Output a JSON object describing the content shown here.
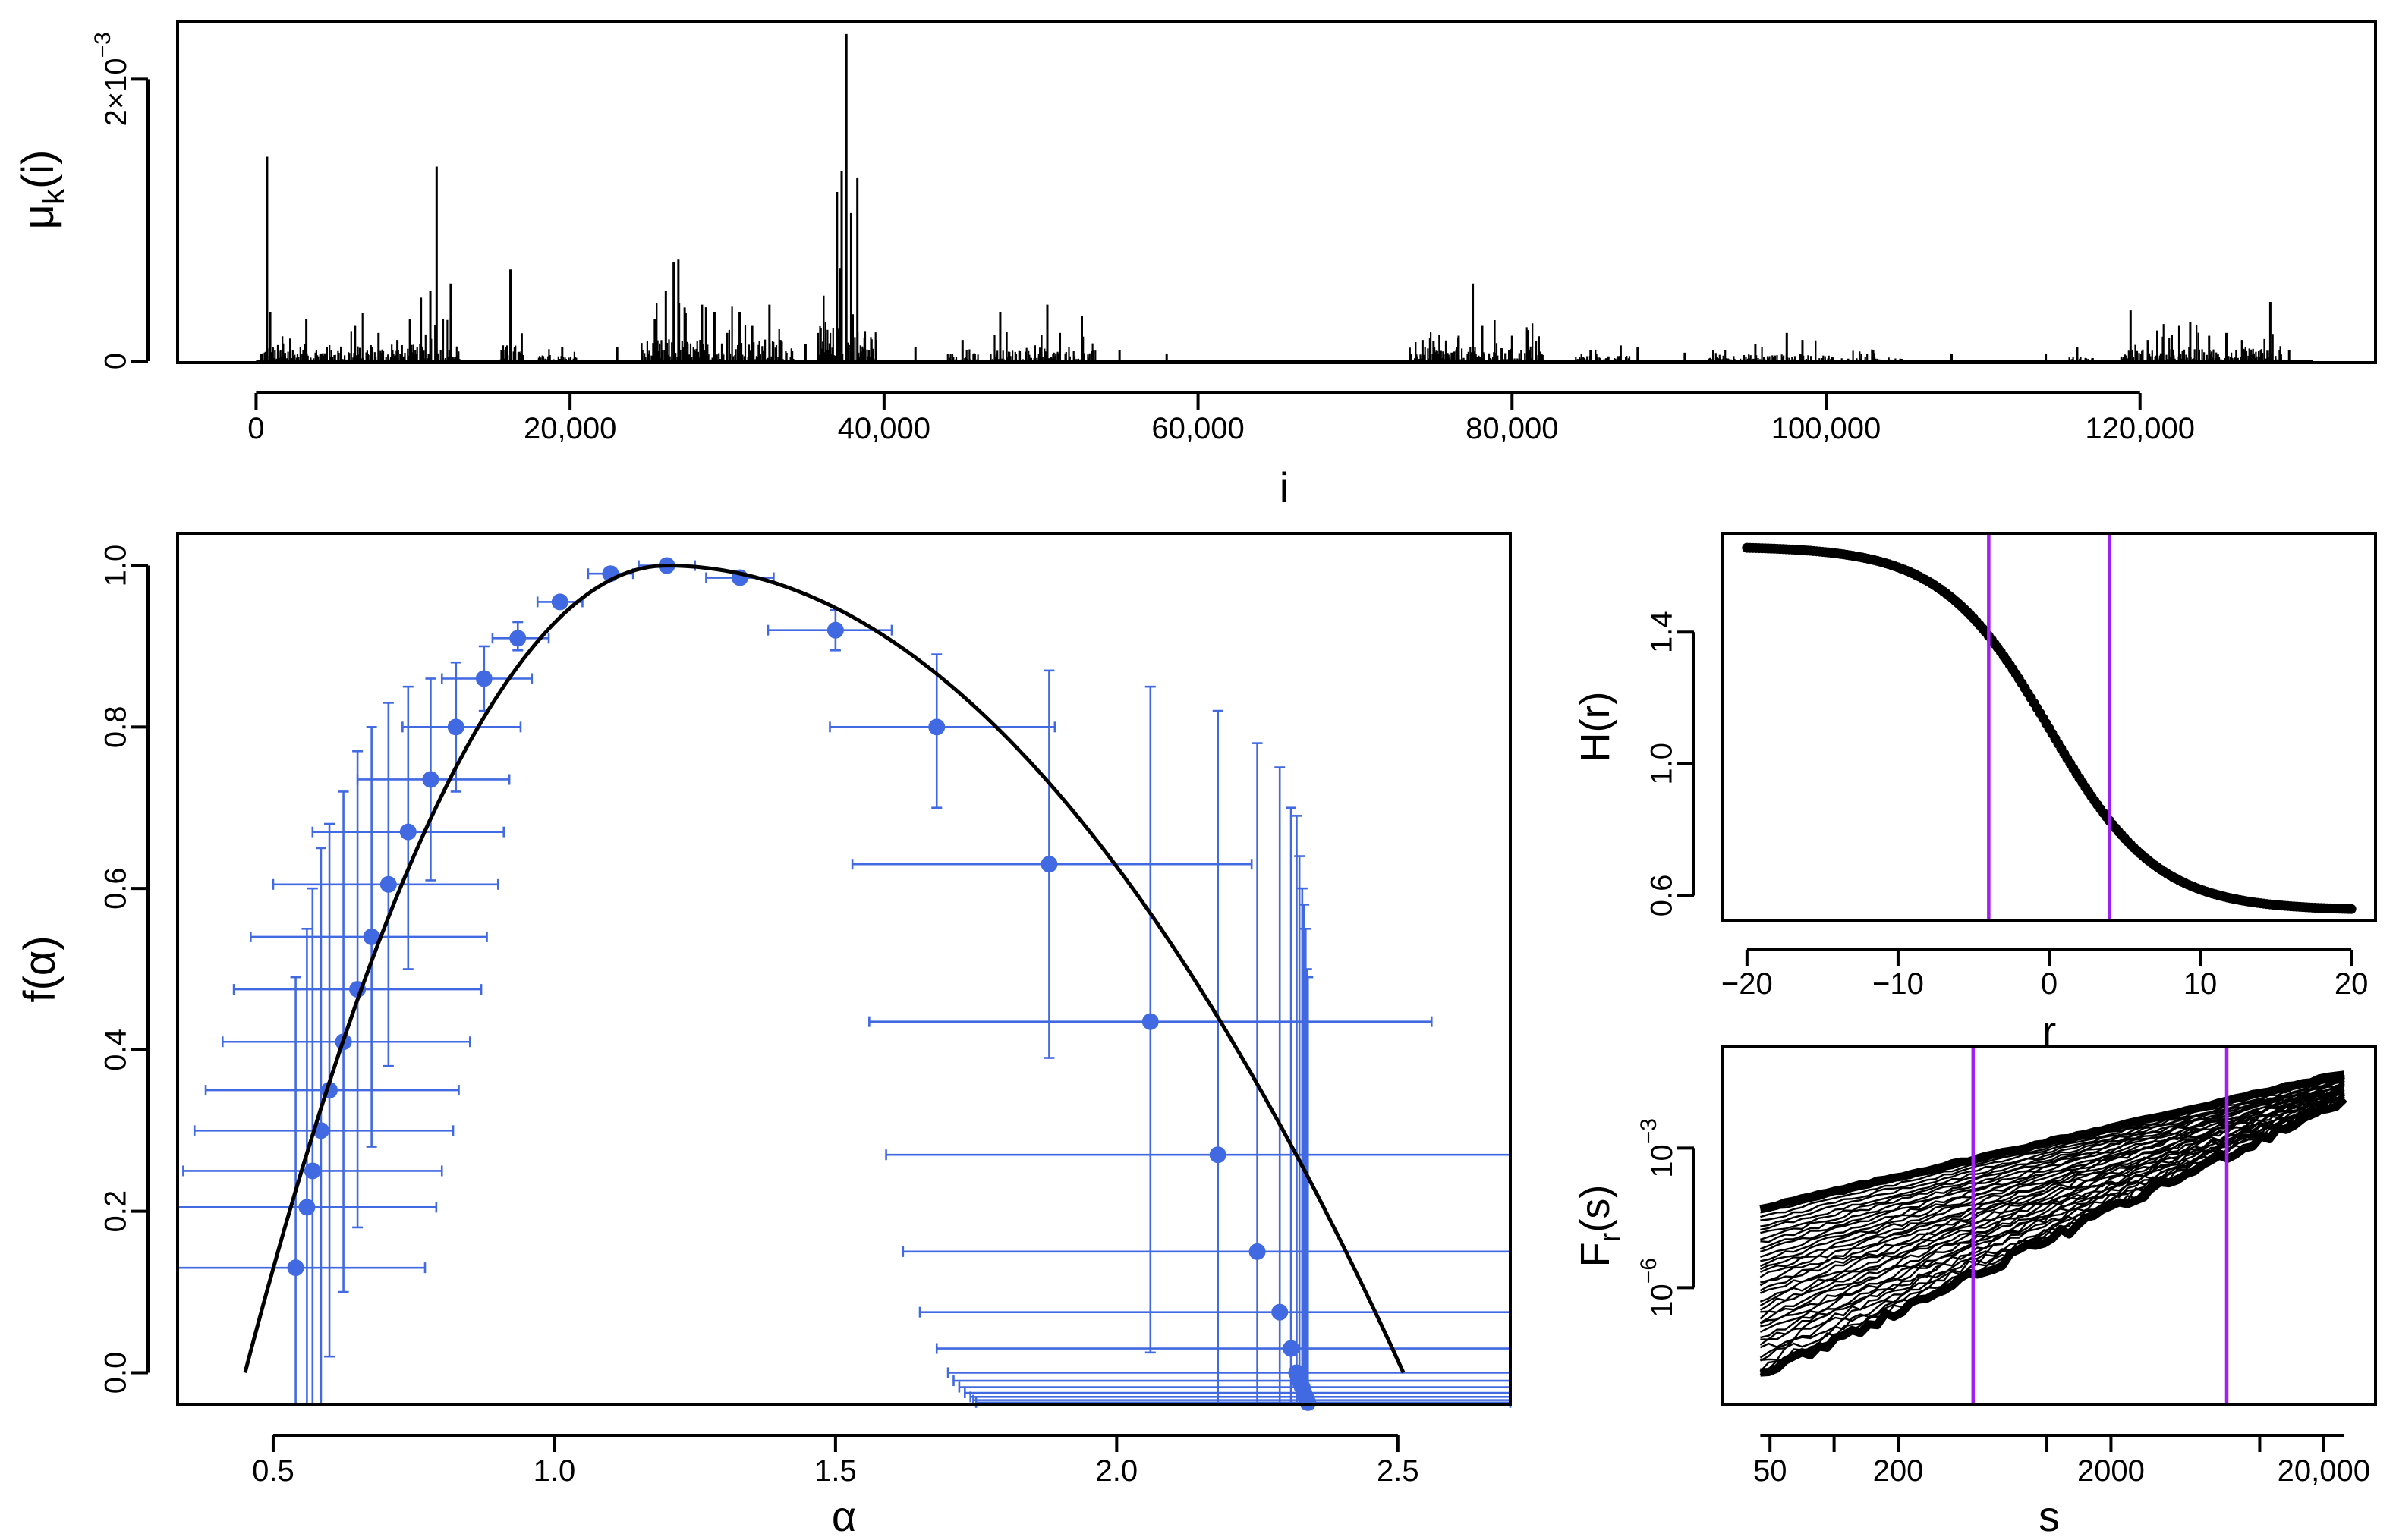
{
  "chart_data": [
    {
      "id": "measure",
      "type": "line",
      "title": "",
      "xlabel": "i",
      "ylabel": "μk(i)",
      "ylabel_main": "μ",
      "ylabel_sub": "k",
      "ylabel_tail": "(i)",
      "xlim": [
        -5000,
        135000
      ],
      "ylim": [
        0,
        0.0024
      ],
      "x_ticks": [
        0,
        20000,
        40000,
        60000,
        80000,
        100000,
        120000
      ],
      "x_tick_labels": [
        "0",
        "20,000",
        "40,000",
        "60,000",
        "80,000",
        "100,000",
        "120,000"
      ],
      "y_tick_labels": [
        "0",
        "2×10⁻³"
      ],
      "y_tick_label_2x": "2×10",
      "y_tick_label_exp": "−3",
      "y_ticks": [
        0,
        0.002
      ],
      "x_end": 131000,
      "spikes": [
        [
          700,
          0.00145
        ],
        [
          900,
          0.00035
        ],
        [
          3200,
          0.0003
        ],
        [
          4500,
          0.0001
        ],
        [
          6300,
          0.00025
        ],
        [
          7800,
          0.0002
        ],
        [
          9000,
          0.00015
        ],
        [
          9800,
          0.0003
        ],
        [
          10500,
          0.00045
        ],
        [
          11100,
          0.0005
        ],
        [
          11500,
          0.00138
        ],
        [
          11900,
          0.0003
        ],
        [
          12400,
          0.00055
        ],
        [
          16200,
          0.00065
        ],
        [
          19500,
          0.0001
        ],
        [
          23000,
          0.0001
        ],
        [
          25400,
          0.0003
        ],
        [
          26100,
          0.0005
        ],
        [
          26600,
          0.0007
        ],
        [
          26900,
          0.00072
        ],
        [
          27300,
          0.00038
        ],
        [
          28400,
          0.0004
        ],
        [
          29200,
          0.00035
        ],
        [
          30000,
          0.0002
        ],
        [
          30800,
          0.00035
        ],
        [
          31600,
          0.00025
        ],
        [
          32700,
          0.0004
        ],
        [
          33400,
          0.00015
        ],
        [
          35000,
          0.00012
        ],
        [
          37000,
          0.0012
        ],
        [
          37300,
          0.00135
        ],
        [
          37600,
          0.00232
        ],
        [
          37900,
          0.00105
        ],
        [
          38300,
          0.0013
        ],
        [
          39500,
          0.00015
        ],
        [
          42000,
          0.0001
        ],
        [
          45000,
          0.00015
        ],
        [
          47400,
          0.00035
        ],
        [
          50400,
          0.0004
        ],
        [
          51200,
          0.0002
        ],
        [
          52600,
          0.00032
        ],
        [
          55000,
          8e-05
        ],
        [
          58000,
          5e-05
        ],
        [
          74300,
          0.00015
        ],
        [
          75000,
          0.00014
        ],
        [
          76600,
          0.00018
        ],
        [
          77500,
          0.00055
        ],
        [
          78100,
          0.00025
        ],
        [
          80000,
          0.00018
        ],
        [
          81000,
          0.00022
        ],
        [
          85000,
          8e-05
        ],
        [
          88000,
          0.0001
        ],
        [
          91000,
          6e-05
        ],
        [
          95500,
          0.00012
        ],
        [
          97500,
          0.0002
        ],
        [
          98500,
          0.00015
        ],
        [
          103000,
          8e-05
        ],
        [
          108000,
          5e-05
        ],
        [
          114000,
          5e-05
        ],
        [
          116000,
          0.0001
        ],
        [
          119400,
          0.00036
        ],
        [
          120500,
          0.00015
        ],
        [
          122500,
          0.00025
        ],
        [
          123200,
          0.00028
        ],
        [
          124400,
          0.00018
        ],
        [
          125500,
          0.0002
        ],
        [
          126500,
          0.00015
        ],
        [
          128300,
          0.00042
        ],
        [
          129500,
          8e-05
        ]
      ],
      "active_ranges": [
        [
          300,
          13000,
          0.00012
        ],
        [
          15500,
          17000,
          0.00012
        ],
        [
          18000,
          20500,
          4e-05
        ],
        [
          24500,
          34500,
          0.00016
        ],
        [
          35800,
          39500,
          0.00025
        ],
        [
          44000,
          46000,
          6e-05
        ],
        [
          46800,
          53500,
          8e-05
        ],
        [
          73500,
          82000,
          0.0001
        ],
        [
          84000,
          87500,
          4e-05
        ],
        [
          92500,
          100500,
          5e-05
        ],
        [
          101000,
          105000,
          3e-05
        ],
        [
          115500,
          117000,
          3e-05
        ],
        [
          118800,
          129000,
          9e-05
        ]
      ]
    },
    {
      "id": "spectrum",
      "type": "scatter",
      "title": "",
      "xlabel": "α",
      "ylabel": "f(α)",
      "xlim": [
        0.33,
        2.7
      ],
      "ylim": [
        -0.04,
        1.04
      ],
      "x_ticks": [
        0.5,
        1.0,
        1.5,
        2.0,
        2.5
      ],
      "x_tick_labels": [
        "0.5",
        "1.0",
        "1.5",
        "2.0",
        "2.5"
      ],
      "y_ticks": [
        0.0,
        0.2,
        0.4,
        0.6,
        0.8,
        1.0
      ],
      "y_tick_labels": [
        "0.0",
        "0.2",
        "0.4",
        "0.6",
        "0.8",
        "1.0"
      ],
      "series": [
        {
          "name": "estimates",
          "color": "#4169E1",
          "points": [
            {
              "a": 0.54,
              "f": 0.13,
              "xlo": 0.33,
              "xhi": 0.77,
              "ylo": -0.06,
              "yhi": 0.49
            },
            {
              "a": 0.56,
              "f": 0.205,
              "xlo": 0.32,
              "xhi": 0.79,
              "ylo": -0.06,
              "yhi": 0.55
            },
            {
              "a": 0.57,
              "f": 0.25,
              "xlo": 0.34,
              "xhi": 0.8,
              "ylo": -0.06,
              "yhi": 0.6
            },
            {
              "a": 0.585,
              "f": 0.3,
              "xlo": 0.36,
              "xhi": 0.82,
              "ylo": -0.06,
              "yhi": 0.65
            },
            {
              "a": 0.6,
              "f": 0.35,
              "xlo": 0.38,
              "xhi": 0.83,
              "ylo": 0.02,
              "yhi": 0.68
            },
            {
              "a": 0.625,
              "f": 0.41,
              "xlo": 0.41,
              "xhi": 0.85,
              "ylo": 0.1,
              "yhi": 0.72
            },
            {
              "a": 0.65,
              "f": 0.475,
              "xlo": 0.43,
              "xhi": 0.87,
              "ylo": 0.18,
              "yhi": 0.77
            },
            {
              "a": 0.675,
              "f": 0.54,
              "xlo": 0.46,
              "xhi": 0.88,
              "ylo": 0.28,
              "yhi": 0.8
            },
            {
              "a": 0.705,
              "f": 0.605,
              "xlo": 0.5,
              "xhi": 0.9,
              "ylo": 0.38,
              "yhi": 0.83
            },
            {
              "a": 0.74,
              "f": 0.67,
              "xlo": 0.57,
              "xhi": 0.91,
              "ylo": 0.5,
              "yhi": 0.85
            },
            {
              "a": 0.78,
              "f": 0.735,
              "xlo": 0.65,
              "xhi": 0.92,
              "ylo": 0.61,
              "yhi": 0.86
            },
            {
              "a": 0.825,
              "f": 0.8,
              "xlo": 0.73,
              "xhi": 0.94,
              "ylo": 0.72,
              "yhi": 0.88
            },
            {
              "a": 0.875,
              "f": 0.86,
              "xlo": 0.8,
              "xhi": 0.96,
              "ylo": 0.82,
              "yhi": 0.9
            },
            {
              "a": 0.935,
              "f": 0.91,
              "xlo": 0.89,
              "xhi": 0.99,
              "ylo": 0.895,
              "yhi": 0.93
            },
            {
              "a": 1.01,
              "f": 0.955,
              "xlo": 0.97,
              "xhi": 1.05,
              "ylo": 0.948,
              "yhi": 0.962
            },
            {
              "a": 1.1,
              "f": 0.99,
              "xlo": 1.06,
              "xhi": 1.14,
              "ylo": 0.99,
              "yhi": 0.99
            },
            {
              "a": 1.2,
              "f": 1.0,
              "xlo": 1.15,
              "xhi": 1.25,
              "ylo": 1.0,
              "yhi": 1.0
            },
            {
              "a": 1.33,
              "f": 0.985,
              "xlo": 1.27,
              "xhi": 1.39,
              "ylo": 0.985,
              "yhi": 0.985
            },
            {
              "a": 1.5,
              "f": 0.92,
              "xlo": 1.38,
              "xhi": 1.6,
              "ylo": 0.895,
              "yhi": 0.945
            },
            {
              "a": 1.68,
              "f": 0.8,
              "xlo": 1.49,
              "xhi": 1.89,
              "ylo": 0.7,
              "yhi": 0.89
            },
            {
              "a": 1.88,
              "f": 0.63,
              "xlo": 1.53,
              "xhi": 2.24,
              "ylo": 0.39,
              "yhi": 0.87
            },
            {
              "a": 2.06,
              "f": 0.435,
              "xlo": 1.56,
              "xhi": 2.56,
              "ylo": 0.025,
              "yhi": 0.85
            },
            {
              "a": 2.18,
              "f": 0.27,
              "xlo": 1.59,
              "xhi": 2.7,
              "ylo": -0.06,
              "yhi": 0.82
            },
            {
              "a": 2.25,
              "f": 0.15,
              "xlo": 1.62,
              "xhi": 2.7,
              "ylo": -0.06,
              "yhi": 0.78
            },
            {
              "a": 2.29,
              "f": 0.075,
              "xlo": 1.65,
              "xhi": 2.7,
              "ylo": -0.06,
              "yhi": 0.75
            },
            {
              "a": 2.31,
              "f": 0.03,
              "xlo": 1.68,
              "xhi": 2.7,
              "ylo": -0.06,
              "yhi": 0.7
            },
            {
              "a": 2.32,
              "f": 0.0,
              "xlo": 1.7,
              "xhi": 2.7,
              "ylo": -0.06,
              "yhi": 0.69
            },
            {
              "a": 2.325,
              "f": -0.01,
              "xlo": 1.71,
              "xhi": 2.7,
              "ylo": -0.06,
              "yhi": 0.64
            },
            {
              "a": 2.33,
              "f": -0.018,
              "xlo": 1.72,
              "xhi": 2.7,
              "ylo": -0.06,
              "yhi": 0.6
            },
            {
              "a": 2.333,
              "f": -0.025,
              "xlo": 1.73,
              "xhi": 2.7,
              "ylo": -0.06,
              "yhi": 0.58
            },
            {
              "a": 2.336,
              "f": -0.03,
              "xlo": 1.74,
              "xhi": 2.7,
              "ylo": -0.06,
              "yhi": 0.55
            },
            {
              "a": 2.338,
              "f": -0.034,
              "xlo": 1.745,
              "xhi": 2.7,
              "ylo": -0.06,
              "yhi": 0.5
            },
            {
              "a": 2.34,
              "f": -0.037,
              "xlo": 1.75,
              "xhi": 2.7,
              "ylo": -0.06,
              "yhi": 0.49
            }
          ]
        },
        {
          "name": "fit",
          "color": "#000000",
          "curve": {
            "peak_a": 1.2,
            "peak_f": 1.0,
            "left_root": 0.45,
            "right_root": 2.51
          }
        }
      ]
    },
    {
      "id": "hurst",
      "type": "scatter",
      "title": "",
      "xlabel": "r",
      "ylabel": "H(r)",
      "xlim": [
        -21.6,
        21.6
      ],
      "ylim": [
        0.525,
        1.7
      ],
      "x_ticks": [
        -20,
        -10,
        0,
        10,
        20
      ],
      "x_tick_labels": [
        "−20",
        "−10",
        "0",
        "10",
        "20"
      ],
      "y_ticks": [
        0.6,
        1.0,
        1.4
      ],
      "y_tick_labels": [
        "0.6",
        "1.0",
        "1.4"
      ],
      "r_range": [
        -20,
        20
      ],
      "r_step": 0.2,
      "H_model": {
        "left_asymptote": 1.66,
        "right_asymptote": 0.555,
        "center": 0.0,
        "slope": 0.28
      },
      "vertical_lines": [
        -4,
        4
      ],
      "vline_color": "#A020F0"
    },
    {
      "id": "fluctuation",
      "type": "line",
      "title": "",
      "xlabel": "s",
      "ylabel": "Fr(s)",
      "ylabel_main": "F",
      "ylabel_sub": "r",
      "ylabel_tail": "(s)",
      "x_scale": "log",
      "y_scale": "log",
      "xlim": [
        30,
        35000
      ],
      "ylim": [
        3e-09,
        0.15
      ],
      "x_ticks": [
        50,
        200,
        2000,
        20000
      ],
      "x_tick_labels": [
        "50",
        "200",
        "2000",
        "20,000"
      ],
      "x_minor_ticks": [
        100,
        1000,
        10000
      ],
      "y_ticks": [
        0.001,
        1e-06
      ],
      "y_tick_base": "10",
      "y_tick_exps": [
        "−3",
        "−6"
      ],
      "s_range": [
        45,
        25000
      ],
      "curve_count": 40,
      "log10_F_at_min_s": [
        -4.3,
        -7.9
      ],
      "log10_F_at_max_s": [
        -1.4,
        -1.95
      ],
      "vertical_lines": [
        450,
        7000
      ],
      "vline_color": "#A020F0"
    }
  ]
}
